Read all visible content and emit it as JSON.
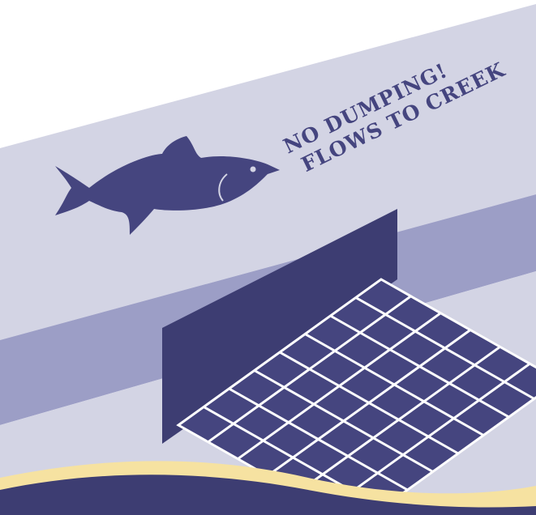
{
  "sign": {
    "line1": "NO DUMPING!",
    "line2": "FLOWS TO CREEK"
  }
}
